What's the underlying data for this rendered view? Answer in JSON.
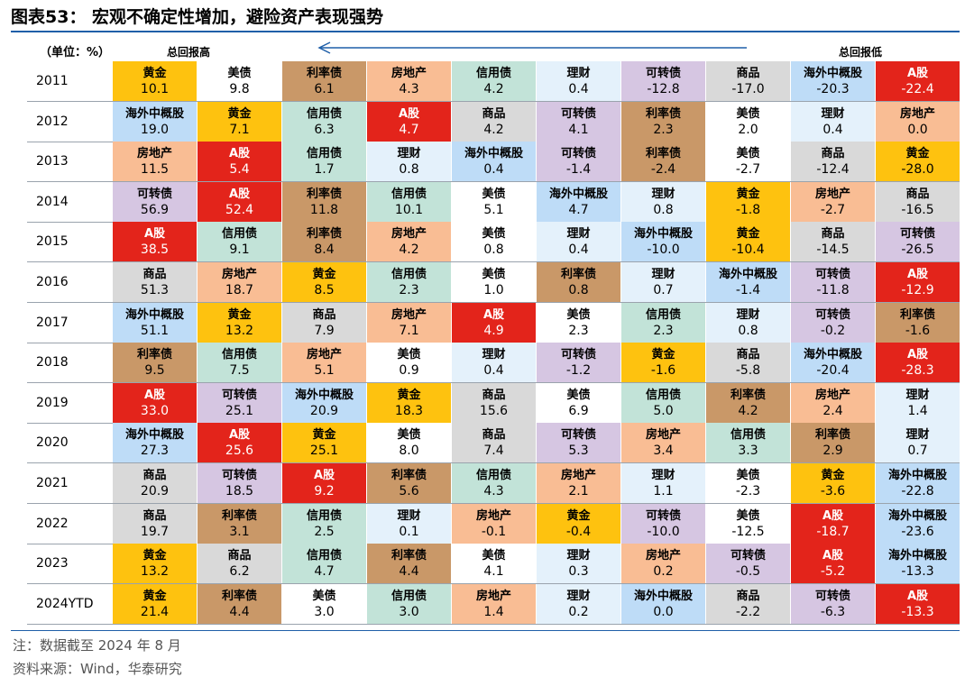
{
  "title": "图表53：  宏观不确定性增加，避险资产表现强势",
  "header": {
    "unit": "（单位：%）",
    "high": "总回报高",
    "low": "总回报低"
  },
  "colors": {
    "黄金": "#fec20f",
    "美债": "#ffffff",
    "利率债": "#c99868",
    "房地产": "#f9bd94",
    "信用债": "#c2e3d8",
    "理财": "#e4f1fb",
    "可转债": "#d6c6e2",
    "商品": "#d9d9d9",
    "海外中概股": "#bedcf7",
    "A股": "#e3241b"
  },
  "chart_data": {
    "type": "table",
    "title": "宏观不确定性增加，避险资产表现强势",
    "unit": "%",
    "order_note": "assets ranked left→right from highest to lowest total return",
    "rows": [
      {
        "year": "2011",
        "cells": [
          {
            "asset": "黄金",
            "value": "10.1"
          },
          {
            "asset": "美债",
            "value": "9.8"
          },
          {
            "asset": "利率债",
            "value": "6.1"
          },
          {
            "asset": "房地产",
            "value": "4.3"
          },
          {
            "asset": "信用债",
            "value": "4.2"
          },
          {
            "asset": "理财",
            "value": "0.4"
          },
          {
            "asset": "可转债",
            "value": "-12.8"
          },
          {
            "asset": "商品",
            "value": "-17.0"
          },
          {
            "asset": "海外中概股",
            "value": "-20.3"
          },
          {
            "asset": "A股",
            "value": "-22.4"
          }
        ]
      },
      {
        "year": "2012",
        "cells": [
          {
            "asset": "海外中概股",
            "value": "19.0"
          },
          {
            "asset": "黄金",
            "value": "7.1"
          },
          {
            "asset": "信用债",
            "value": "6.3"
          },
          {
            "asset": "A股",
            "value": "4.7"
          },
          {
            "asset": "商品",
            "value": "4.2"
          },
          {
            "asset": "可转债",
            "value": "4.1"
          },
          {
            "asset": "利率债",
            "value": "2.3"
          },
          {
            "asset": "美债",
            "value": "2.0"
          },
          {
            "asset": "理财",
            "value": "0.4"
          },
          {
            "asset": "房地产",
            "value": "0.0"
          }
        ]
      },
      {
        "year": "2013",
        "cells": [
          {
            "asset": "房地产",
            "value": "11.5"
          },
          {
            "asset": "A股",
            "value": "5.4"
          },
          {
            "asset": "信用债",
            "value": "1.7"
          },
          {
            "asset": "理财",
            "value": "0.8"
          },
          {
            "asset": "海外中概股",
            "value": "0.4"
          },
          {
            "asset": "可转债",
            "value": "-1.4"
          },
          {
            "asset": "利率债",
            "value": "-2.4"
          },
          {
            "asset": "美债",
            "value": "-2.7"
          },
          {
            "asset": "商品",
            "value": "-12.4"
          },
          {
            "asset": "黄金",
            "value": "-28.0"
          }
        ]
      },
      {
        "year": "2014",
        "cells": [
          {
            "asset": "可转债",
            "value": "56.9"
          },
          {
            "asset": "A股",
            "value": "52.4"
          },
          {
            "asset": "利率债",
            "value": "11.8"
          },
          {
            "asset": "信用债",
            "value": "10.1"
          },
          {
            "asset": "美债",
            "value": "5.1"
          },
          {
            "asset": "海外中概股",
            "value": "4.7"
          },
          {
            "asset": "理财",
            "value": "0.8"
          },
          {
            "asset": "黄金",
            "value": "-1.8"
          },
          {
            "asset": "房地产",
            "value": "-2.7"
          },
          {
            "asset": "商品",
            "value": "-16.5"
          }
        ]
      },
      {
        "year": "2015",
        "cells": [
          {
            "asset": "A股",
            "value": "38.5"
          },
          {
            "asset": "信用债",
            "value": "9.1"
          },
          {
            "asset": "利率债",
            "value": "8.4"
          },
          {
            "asset": "房地产",
            "value": "4.2"
          },
          {
            "asset": "美债",
            "value": "0.8"
          },
          {
            "asset": "理财",
            "value": "0.4"
          },
          {
            "asset": "海外中概股",
            "value": "-10.0"
          },
          {
            "asset": "黄金",
            "value": "-10.4"
          },
          {
            "asset": "商品",
            "value": "-14.5"
          },
          {
            "asset": "可转债",
            "value": "-26.5"
          }
        ]
      },
      {
        "year": "2016",
        "cells": [
          {
            "asset": "商品",
            "value": "51.3"
          },
          {
            "asset": "房地产",
            "value": "18.7"
          },
          {
            "asset": "黄金",
            "value": "8.5"
          },
          {
            "asset": "信用债",
            "value": "2.3"
          },
          {
            "asset": "美债",
            "value": "1.0"
          },
          {
            "asset": "利率债",
            "value": "0.8"
          },
          {
            "asset": "理财",
            "value": "0.7"
          },
          {
            "asset": "海外中概股",
            "value": "-1.4"
          },
          {
            "asset": "可转债",
            "value": "-11.8"
          },
          {
            "asset": "A股",
            "value": "-12.9"
          }
        ]
      },
      {
        "year": "2017",
        "cells": [
          {
            "asset": "海外中概股",
            "value": "51.1"
          },
          {
            "asset": "黄金",
            "value": "13.2"
          },
          {
            "asset": "商品",
            "value": "7.9"
          },
          {
            "asset": "房地产",
            "value": "7.1"
          },
          {
            "asset": "A股",
            "value": "4.9"
          },
          {
            "asset": "美债",
            "value": "2.3"
          },
          {
            "asset": "信用债",
            "value": "2.3"
          },
          {
            "asset": "理财",
            "value": "0.8"
          },
          {
            "asset": "可转债",
            "value": "-0.2"
          },
          {
            "asset": "利率债",
            "value": "-1.6"
          }
        ]
      },
      {
        "year": "2018",
        "cells": [
          {
            "asset": "利率债",
            "value": "9.5"
          },
          {
            "asset": "信用债",
            "value": "7.5"
          },
          {
            "asset": "房地产",
            "value": "5.1"
          },
          {
            "asset": "美债",
            "value": "0.9"
          },
          {
            "asset": "理财",
            "value": "0.4"
          },
          {
            "asset": "可转债",
            "value": "-1.2"
          },
          {
            "asset": "黄金",
            "value": "-1.6"
          },
          {
            "asset": "商品",
            "value": "-5.8"
          },
          {
            "asset": "海外中概股",
            "value": "-20.4"
          },
          {
            "asset": "A股",
            "value": "-28.3"
          }
        ]
      },
      {
        "year": "2019",
        "cells": [
          {
            "asset": "A股",
            "value": "33.0"
          },
          {
            "asset": "可转债",
            "value": "25.1"
          },
          {
            "asset": "海外中概股",
            "value": "20.9"
          },
          {
            "asset": "黄金",
            "value": "18.3"
          },
          {
            "asset": "商品",
            "value": "15.6"
          },
          {
            "asset": "美债",
            "value": "6.9"
          },
          {
            "asset": "信用债",
            "value": "5.0"
          },
          {
            "asset": "利率债",
            "value": "4.2"
          },
          {
            "asset": "房地产",
            "value": "2.4"
          },
          {
            "asset": "理财",
            "value": "1.4"
          }
        ]
      },
      {
        "year": "2020",
        "cells": [
          {
            "asset": "海外中概股",
            "value": "27.3"
          },
          {
            "asset": "A股",
            "value": "25.6"
          },
          {
            "asset": "黄金",
            "value": "25.1"
          },
          {
            "asset": "美债",
            "value": "8.0"
          },
          {
            "asset": "商品",
            "value": "7.4"
          },
          {
            "asset": "可转债",
            "value": "5.3"
          },
          {
            "asset": "房地产",
            "value": "3.4"
          },
          {
            "asset": "信用债",
            "value": "3.3"
          },
          {
            "asset": "利率债",
            "value": "2.9"
          },
          {
            "asset": "理财",
            "value": "0.7"
          }
        ]
      },
      {
        "year": "2021",
        "cells": [
          {
            "asset": "商品",
            "value": "20.9"
          },
          {
            "asset": "可转债",
            "value": "18.5"
          },
          {
            "asset": "A股",
            "value": "9.2"
          },
          {
            "asset": "利率债",
            "value": "5.6"
          },
          {
            "asset": "信用债",
            "value": "4.3"
          },
          {
            "asset": "房地产",
            "value": "2.1"
          },
          {
            "asset": "理财",
            "value": "1.1"
          },
          {
            "asset": "美债",
            "value": "-2.3"
          },
          {
            "asset": "黄金",
            "value": "-3.6"
          },
          {
            "asset": "海外中概股",
            "value": "-22.8"
          }
        ]
      },
      {
        "year": "2022",
        "cells": [
          {
            "asset": "商品",
            "value": "19.7"
          },
          {
            "asset": "利率债",
            "value": "3.1"
          },
          {
            "asset": "信用债",
            "value": "2.5"
          },
          {
            "asset": "理财",
            "value": "0.1"
          },
          {
            "asset": "房地产",
            "value": "-0.1"
          },
          {
            "asset": "黄金",
            "value": "-0.4"
          },
          {
            "asset": "可转债",
            "value": "-10.0"
          },
          {
            "asset": "美债",
            "value": "-12.5"
          },
          {
            "asset": "A股",
            "value": "-18.7"
          },
          {
            "asset": "海外中概股",
            "value": "-23.6"
          }
        ]
      },
      {
        "year": "2023",
        "cells": [
          {
            "asset": "黄金",
            "value": "13.2"
          },
          {
            "asset": "商品",
            "value": "6.2"
          },
          {
            "asset": "信用债",
            "value": "4.7"
          },
          {
            "asset": "利率债",
            "value": "4.4"
          },
          {
            "asset": "美债",
            "value": "4.1"
          },
          {
            "asset": "理财",
            "value": "0.3"
          },
          {
            "asset": "房地产",
            "value": "0.2"
          },
          {
            "asset": "可转债",
            "value": "-0.5"
          },
          {
            "asset": "A股",
            "value": "-5.2"
          },
          {
            "asset": "海外中概股",
            "value": "-13.3"
          }
        ]
      },
      {
        "year": "2024YTD",
        "cells": [
          {
            "asset": "黄金",
            "value": "21.4"
          },
          {
            "asset": "利率债",
            "value": "4.4"
          },
          {
            "asset": "美债",
            "value": "3.0"
          },
          {
            "asset": "信用债",
            "value": "3.0"
          },
          {
            "asset": "房地产",
            "value": "1.4"
          },
          {
            "asset": "理财",
            "value": "0.2"
          },
          {
            "asset": "海外中概股",
            "value": "0.0"
          },
          {
            "asset": "商品",
            "value": "-2.2"
          },
          {
            "asset": "可转债",
            "value": "-6.3"
          },
          {
            "asset": "A股",
            "value": "-13.3"
          }
        ]
      }
    ]
  },
  "footer": {
    "note": "注：数据截至 2024 年 8 月",
    "source": "资料来源：Wind，华泰研究"
  }
}
